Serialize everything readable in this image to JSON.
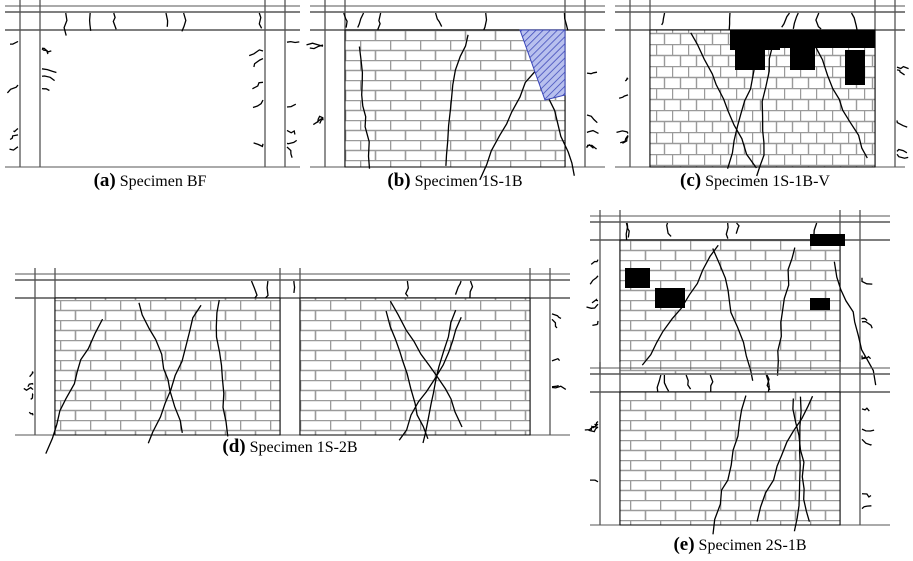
{
  "panels": [
    {
      "label": "(a)",
      "caption": "Specimen BF"
    },
    {
      "label": "(b)",
      "caption": "Specimen 1S-1B"
    },
    {
      "label": "(c)",
      "caption": "Specimen 1S-1B-V"
    },
    {
      "label": "(d)",
      "caption": "Specimen 1S-2B"
    },
    {
      "label": "(e)",
      "caption": "Specimen 2S-1B"
    }
  ]
}
